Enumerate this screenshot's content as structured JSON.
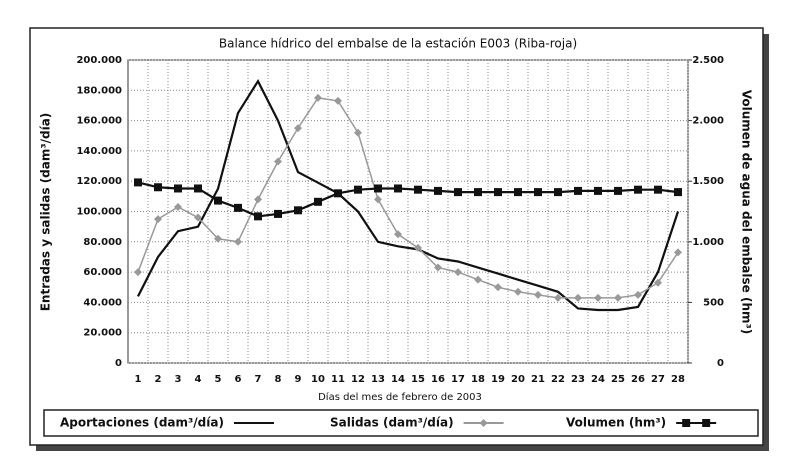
{
  "chart_data": {
    "type": "line",
    "title": "Balance hídrico del embalse de la estación E003 (Riba-roja)",
    "x_label": "Días del mes de febrero de 2003",
    "y_label": "Entradas y salidas  (dam³/día)",
    "y2_label": "Volumen de agua del embalse  (hm³)",
    "categories": [
      "1",
      "2",
      "3",
      "4",
      "5",
      "6",
      "7",
      "8",
      "9",
      "10",
      "11",
      "12",
      "13",
      "14",
      "15",
      "16",
      "17",
      "18",
      "19",
      "20",
      "21",
      "22",
      "23",
      "24",
      "25",
      "26",
      "27",
      "28"
    ],
    "ylim": [
      0,
      200000
    ],
    "yticks": [
      0,
      {
        "value": 20000,
        "label": "20.000"
      },
      {
        "value": 40000,
        "label": "40.000"
      },
      {
        "value": 60000,
        "label": "60.000"
      },
      {
        "value": 80000,
        "label": "80.000"
      },
      {
        "value": 100000,
        "label": "100.000"
      },
      {
        "value": 120000,
        "label": "120.000"
      },
      {
        "value": 140000,
        "label": "140.000"
      },
      {
        "value": 160000,
        "label": "160.000"
      },
      {
        "value": 180000,
        "label": "180.000"
      },
      {
        "value": 200000,
        "label": "200.000"
      }
    ],
    "y2lim": [
      0,
      2500
    ],
    "y2ticks": [
      0,
      500,
      {
        "value": 1000,
        "label": "1.000"
      },
      {
        "value": 1500,
        "label": "1.500"
      },
      {
        "value": 2000,
        "label": "2.000"
      },
      {
        "value": 2500,
        "label": "2.500"
      }
    ],
    "grid": true,
    "series": [
      {
        "name": "Aportaciones (dam³/día)",
        "color": "#111111",
        "marker": "none",
        "values": [
          44000,
          70000,
          87000,
          90000,
          115000,
          165000,
          186000,
          160000,
          126000,
          119000,
          112000,
          100000,
          80000,
          77000,
          75000,
          69000,
          67000,
          63000,
          59000,
          55000,
          51000,
          47000,
          36000,
          35000,
          35000,
          37000,
          60000,
          100000
        ]
      },
      {
        "name": "Salidas  (dam³/día)",
        "color": "#999999",
        "marker": "diamond",
        "values": [
          60000,
          95000,
          103000,
          96000,
          82000,
          80000,
          108000,
          133000,
          155000,
          175000,
          173000,
          152000,
          108000,
          85000,
          76000,
          63000,
          60000,
          55000,
          50000,
          47000,
          45000,
          43000,
          43000,
          43000,
          43000,
          45000,
          53000,
          73000
        ]
      },
      {
        "name": "Volumen (hm³)",
        "color": "#111111",
        "marker": "square",
        "axis": "y2",
        "values": [
          1490,
          1450,
          1440,
          1440,
          1340,
          1280,
          1210,
          1230,
          1260,
          1330,
          1400,
          1430,
          1440,
          1440,
          1430,
          1420,
          1410,
          1410,
          1410,
          1410,
          1410,
          1410,
          1420,
          1420,
          1420,
          1430,
          1430,
          1410
        ]
      }
    ]
  }
}
